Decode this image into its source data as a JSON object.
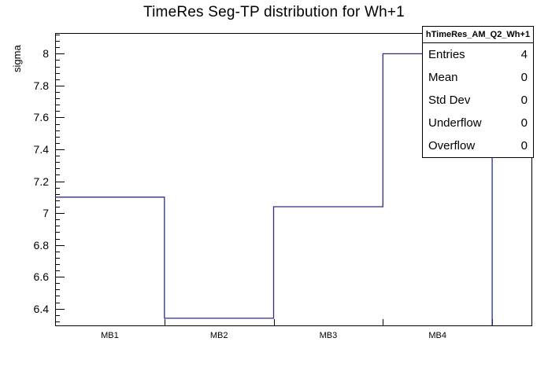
{
  "chart_data": {
    "type": "line",
    "subtype": "histogram-step",
    "title": "TimeRes Seg-TP distribution for Wh+1",
    "xlabel": "",
    "ylabel": "sigma",
    "categories": [
      "MB1",
      "MB2",
      "MB3",
      "MB4"
    ],
    "values": [
      7.1,
      6.34,
      7.04,
      8.0
    ],
    "ylim": [
      6.29,
      8.13
    ],
    "yticks": [
      6.4,
      6.6,
      6.8,
      7,
      7.2,
      7.4,
      7.6,
      7.8,
      8
    ],
    "ytick_labels": [
      "6.4",
      "6.6",
      "6.8",
      "7",
      "7.2",
      "7.4",
      "7.6",
      "7.8",
      "8"
    ],
    "y_minor_step": 0.04,
    "bins_span_fraction": 0.916,
    "line_color": "#2b2e83",
    "grid": false,
    "legend": "none"
  },
  "stats": {
    "title": "hTimeRes_AM_Q2_Wh+1",
    "rows": [
      {
        "label": "Entries",
        "value": "4"
      },
      {
        "label": "Mean",
        "value": "0"
      },
      {
        "label": "Std Dev",
        "value": "0"
      },
      {
        "label": "Underflow",
        "value": "0"
      },
      {
        "label": "Overflow",
        "value": "0"
      }
    ]
  }
}
